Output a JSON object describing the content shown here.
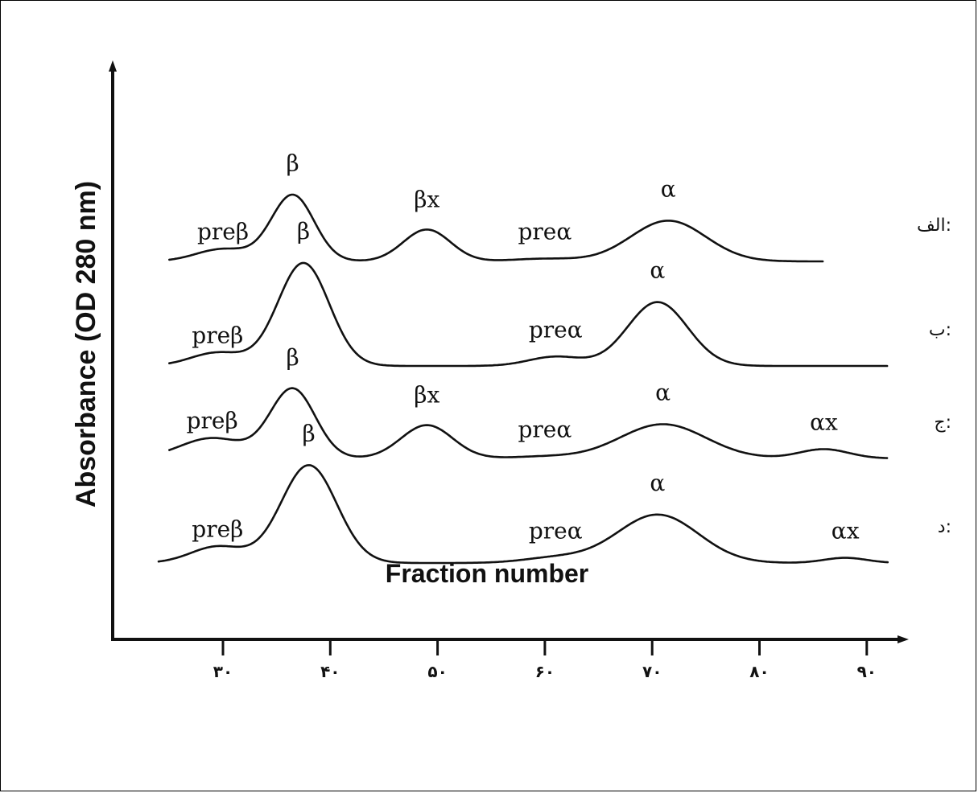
{
  "chart_data": {
    "type": "line",
    "xlabel": "Fraction number",
    "ylabel": "Absorbance (OD 280 nm)",
    "xlim": [
      22,
      93
    ],
    "x_ticks": [
      30,
      40,
      50,
      60,
      70,
      80,
      90
    ],
    "x_tick_labels": [
      "۳۰",
      "۴۰",
      "۵۰",
      "۶۰",
      "۷۰",
      "۸۰",
      "۹۰"
    ],
    "grid": false,
    "series": [
      {
        "name": "الف:",
        "baseline_x_range": [
          25,
          86
        ],
        "peaks": [
          {
            "label": "preβ",
            "x": 30,
            "height": 0.14,
            "width": 2.5
          },
          {
            "label": "β",
            "x": 36.5,
            "height": 0.75,
            "width": 2.0
          },
          {
            "label": "βx",
            "x": 49,
            "height": 0.36,
            "width": 2.2
          },
          {
            "label": "preα",
            "x": 60,
            "height": 0.03,
            "width": 3.0
          },
          {
            "label": "α",
            "x": 71.5,
            "height": 0.46,
            "width": 3.5
          }
        ]
      },
      {
        "name": "ب:",
        "baseline_x_range": [
          25,
          92
        ],
        "peaks": [
          {
            "label": "preβ",
            "x": 29.5,
            "height": 0.13,
            "width": 2.5
          },
          {
            "label": "β",
            "x": 37.5,
            "height": 1.0,
            "width": 2.4
          },
          {
            "label": "preα",
            "x": 61,
            "height": 0.09,
            "width": 2.5
          },
          {
            "label": "α",
            "x": 70.5,
            "height": 0.62,
            "width": 2.8
          }
        ]
      },
      {
        "name": "ج:",
        "baseline_x_range": [
          25,
          92
        ],
        "peaks": [
          {
            "label": "preβ",
            "x": 29,
            "height": 0.22,
            "width": 3.0
          },
          {
            "label": "β",
            "x": 36.5,
            "height": 0.75,
            "width": 2.1
          },
          {
            "label": "βx",
            "x": 49,
            "height": 0.36,
            "width": 2.4
          },
          {
            "label": "preα",
            "x": 60,
            "height": 0.02,
            "width": 3.0
          },
          {
            "label": "α",
            "x": 71,
            "height": 0.37,
            "width": 4.0
          },
          {
            "label": "αx",
            "x": 86,
            "height": 0.1,
            "width": 2.3
          }
        ]
      },
      {
        "name": "د:",
        "baseline_x_range": [
          24,
          92
        ],
        "peaks": [
          {
            "label": "preβ",
            "x": 29.5,
            "height": 0.16,
            "width": 2.5
          },
          {
            "label": "β",
            "x": 38,
            "height": 0.95,
            "width": 2.6
          },
          {
            "label": "preα",
            "x": 61,
            "height": 0.05,
            "width": 3.0
          },
          {
            "label": "α",
            "x": 70.5,
            "height": 0.47,
            "width": 3.8
          },
          {
            "label": "αx",
            "x": 88,
            "height": 0.05,
            "width": 2.0
          }
        ]
      }
    ]
  }
}
